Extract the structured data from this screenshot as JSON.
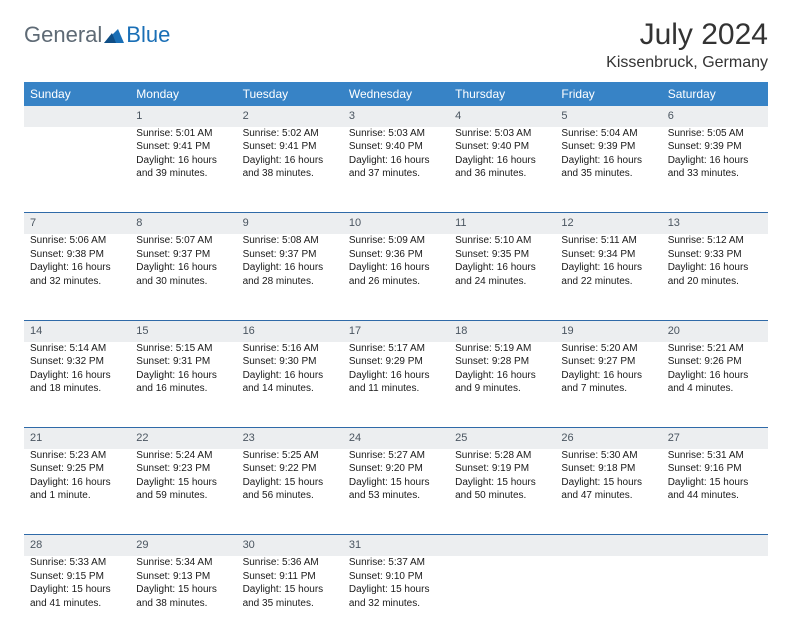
{
  "brand": {
    "part1": "General",
    "part2": "Blue"
  },
  "title": "July 2024",
  "location": "Kissenbruck, Germany",
  "colors": {
    "header_bg": "#3783c6",
    "header_text": "#ffffff",
    "daynum_bg": "#eceef0",
    "daynum_text": "#4a5560",
    "rule": "#2f6aa8",
    "body_text": "#1a1a1a",
    "brand_gray": "#5e6a75",
    "brand_blue": "#1a6fb6"
  },
  "weekdays": [
    "Sunday",
    "Monday",
    "Tuesday",
    "Wednesday",
    "Thursday",
    "Friday",
    "Saturday"
  ],
  "weeks": [
    {
      "nums": [
        "",
        "1",
        "2",
        "3",
        "4",
        "5",
        "6"
      ],
      "cells": [
        {
          "lines": []
        },
        {
          "lines": [
            "Sunrise: 5:01 AM",
            "Sunset: 9:41 PM",
            "Daylight: 16 hours",
            "and 39 minutes."
          ]
        },
        {
          "lines": [
            "Sunrise: 5:02 AM",
            "Sunset: 9:41 PM",
            "Daylight: 16 hours",
            "and 38 minutes."
          ]
        },
        {
          "lines": [
            "Sunrise: 5:03 AM",
            "Sunset: 9:40 PM",
            "Daylight: 16 hours",
            "and 37 minutes."
          ]
        },
        {
          "lines": [
            "Sunrise: 5:03 AM",
            "Sunset: 9:40 PM",
            "Daylight: 16 hours",
            "and 36 minutes."
          ]
        },
        {
          "lines": [
            "Sunrise: 5:04 AM",
            "Sunset: 9:39 PM",
            "Daylight: 16 hours",
            "and 35 minutes."
          ]
        },
        {
          "lines": [
            "Sunrise: 5:05 AM",
            "Sunset: 9:39 PM",
            "Daylight: 16 hours",
            "and 33 minutes."
          ]
        }
      ]
    },
    {
      "nums": [
        "7",
        "8",
        "9",
        "10",
        "11",
        "12",
        "13"
      ],
      "cells": [
        {
          "lines": [
            "Sunrise: 5:06 AM",
            "Sunset: 9:38 PM",
            "Daylight: 16 hours",
            "and 32 minutes."
          ]
        },
        {
          "lines": [
            "Sunrise: 5:07 AM",
            "Sunset: 9:37 PM",
            "Daylight: 16 hours",
            "and 30 minutes."
          ]
        },
        {
          "lines": [
            "Sunrise: 5:08 AM",
            "Sunset: 9:37 PM",
            "Daylight: 16 hours",
            "and 28 minutes."
          ]
        },
        {
          "lines": [
            "Sunrise: 5:09 AM",
            "Sunset: 9:36 PM",
            "Daylight: 16 hours",
            "and 26 minutes."
          ]
        },
        {
          "lines": [
            "Sunrise: 5:10 AM",
            "Sunset: 9:35 PM",
            "Daylight: 16 hours",
            "and 24 minutes."
          ]
        },
        {
          "lines": [
            "Sunrise: 5:11 AM",
            "Sunset: 9:34 PM",
            "Daylight: 16 hours",
            "and 22 minutes."
          ]
        },
        {
          "lines": [
            "Sunrise: 5:12 AM",
            "Sunset: 9:33 PM",
            "Daylight: 16 hours",
            "and 20 minutes."
          ]
        }
      ]
    },
    {
      "nums": [
        "14",
        "15",
        "16",
        "17",
        "18",
        "19",
        "20"
      ],
      "cells": [
        {
          "lines": [
            "Sunrise: 5:14 AM",
            "Sunset: 9:32 PM",
            "Daylight: 16 hours",
            "and 18 minutes."
          ]
        },
        {
          "lines": [
            "Sunrise: 5:15 AM",
            "Sunset: 9:31 PM",
            "Daylight: 16 hours",
            "and 16 minutes."
          ]
        },
        {
          "lines": [
            "Sunrise: 5:16 AM",
            "Sunset: 9:30 PM",
            "Daylight: 16 hours",
            "and 14 minutes."
          ]
        },
        {
          "lines": [
            "Sunrise: 5:17 AM",
            "Sunset: 9:29 PM",
            "Daylight: 16 hours",
            "and 11 minutes."
          ]
        },
        {
          "lines": [
            "Sunrise: 5:19 AM",
            "Sunset: 9:28 PM",
            "Daylight: 16 hours",
            "and 9 minutes."
          ]
        },
        {
          "lines": [
            "Sunrise: 5:20 AM",
            "Sunset: 9:27 PM",
            "Daylight: 16 hours",
            "and 7 minutes."
          ]
        },
        {
          "lines": [
            "Sunrise: 5:21 AM",
            "Sunset: 9:26 PM",
            "Daylight: 16 hours",
            "and 4 minutes."
          ]
        }
      ]
    },
    {
      "nums": [
        "21",
        "22",
        "23",
        "24",
        "25",
        "26",
        "27"
      ],
      "cells": [
        {
          "lines": [
            "Sunrise: 5:23 AM",
            "Sunset: 9:25 PM",
            "Daylight: 16 hours",
            "and 1 minute."
          ]
        },
        {
          "lines": [
            "Sunrise: 5:24 AM",
            "Sunset: 9:23 PM",
            "Daylight: 15 hours",
            "and 59 minutes."
          ]
        },
        {
          "lines": [
            "Sunrise: 5:25 AM",
            "Sunset: 9:22 PM",
            "Daylight: 15 hours",
            "and 56 minutes."
          ]
        },
        {
          "lines": [
            "Sunrise: 5:27 AM",
            "Sunset: 9:20 PM",
            "Daylight: 15 hours",
            "and 53 minutes."
          ]
        },
        {
          "lines": [
            "Sunrise: 5:28 AM",
            "Sunset: 9:19 PM",
            "Daylight: 15 hours",
            "and 50 minutes."
          ]
        },
        {
          "lines": [
            "Sunrise: 5:30 AM",
            "Sunset: 9:18 PM",
            "Daylight: 15 hours",
            "and 47 minutes."
          ]
        },
        {
          "lines": [
            "Sunrise: 5:31 AM",
            "Sunset: 9:16 PM",
            "Daylight: 15 hours",
            "and 44 minutes."
          ]
        }
      ]
    },
    {
      "nums": [
        "28",
        "29",
        "30",
        "31",
        "",
        "",
        ""
      ],
      "cells": [
        {
          "lines": [
            "Sunrise: 5:33 AM",
            "Sunset: 9:15 PM",
            "Daylight: 15 hours",
            "and 41 minutes."
          ]
        },
        {
          "lines": [
            "Sunrise: 5:34 AM",
            "Sunset: 9:13 PM",
            "Daylight: 15 hours",
            "and 38 minutes."
          ]
        },
        {
          "lines": [
            "Sunrise: 5:36 AM",
            "Sunset: 9:11 PM",
            "Daylight: 15 hours",
            "and 35 minutes."
          ]
        },
        {
          "lines": [
            "Sunrise: 5:37 AM",
            "Sunset: 9:10 PM",
            "Daylight: 15 hours",
            "and 32 minutes."
          ]
        },
        {
          "lines": []
        },
        {
          "lines": []
        },
        {
          "lines": []
        }
      ]
    }
  ]
}
